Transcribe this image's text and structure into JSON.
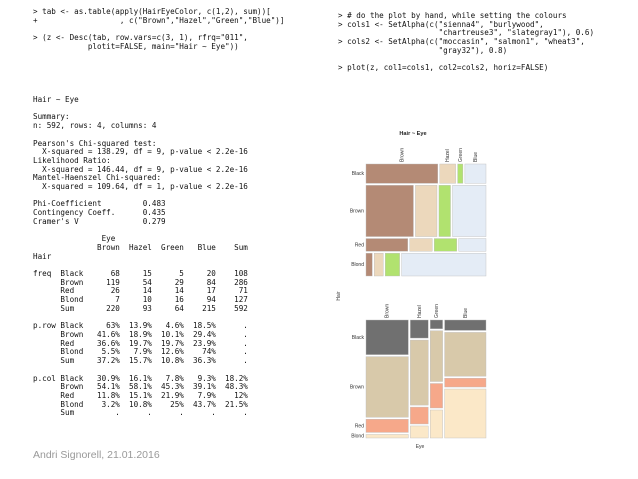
{
  "console_left_top": "> tab <- as.table(apply(HairEyeColor, c(1,2), sum))[\n+                  , c(\"Brown\",\"Hazel\",\"Green\",\"Blue\")]\n\n> (z <- Desc(tab, row.vars=c(3, 1), rfrq=\"011\",\n            plotit=FALSE, main=\"Hair ~ Eye\"))",
  "console_left_output": "Hair ~ Eye\n\nSummary:\nn: 592, rows: 4, columns: 4\n\nPearson's Chi-squared test:\n  X-squared = 138.29, df = 9, p-value < 2.2e-16\nLikelihood Ratio:\n  X-squared = 146.44, df = 9, p-value < 2.2e-16\nMantel-Haenszel Chi-squared:\n  X-squared = 109.64, df = 1, p-value < 2.2e-16\n\nPhi-Coefficient         0.483\nContingency Coeff.      0.435\nCramer's V              0.279\n\n               Eye\n              Brown  Hazel  Green   Blue    Sum\nHair\n\nfreq  Black      68     15      5     20    108\n      Brown     119     54     29     84    286\n      Red        26     14     14     17     71\n      Blond       7     10     16     94    127\n      Sum       220     93     64    215    592\n\np.row Black     63%  13.9%   4.6%  18.5%      .\n      Brown   41.6%  18.9%  10.1%  29.4%      .\n      Red     36.6%  19.7%  19.7%  23.9%      .\n      Blond    5.5%   7.9%  12.6%    74%      .\n      Sum     37.2%  15.7%  10.8%  36.3%      .\n\np.col Black   30.9%  16.1%   7.8%   9.3%  18.2%\n      Brown   54.1%  58.1%  45.3%  39.1%  48.3%\n      Red     11.8%  15.1%  21.9%   7.9%    12%\n      Blond    3.2%  10.8%    25%  43.7%  21.5%\n      Sum         .      .      .      .      .",
  "console_right": "> # do the plot by hand, while setting the colours\n> cols1 <- SetAlpha(c(\"sienna4\", \"burlywood\",\n                      \"chartreuse3\", \"slategray1\"), 0.6)\n> cols2 <- SetAlpha(c(\"moccasin\", \"salmon1\", \"wheat3\",\n                      \"gray32\"), 0.8)\n\n> plot(z, col1=cols1, col2=cols2, horiz=FALSE)",
  "footer": "Andri Signorell, 21.01.2016",
  "plot": {
    "title": "Hair ~ Eye",
    "y_axis_label": "Hair",
    "x_axis_label": "Eye",
    "hair_levels": [
      "Black",
      "Brown",
      "Red",
      "Blond"
    ],
    "eye_levels": [
      "Brown",
      "Hazel",
      "Green",
      "Blue"
    ],
    "colors_top": [
      "#b48a75",
      "#ecd8bc",
      "#b1e26f",
      "#e4ecf6"
    ],
    "colors_bottom": [
      "#707070",
      "#d8c9aa",
      "#f6a88a",
      "#fbe8c8"
    ]
  },
  "chart_data": {
    "type": "mosaic",
    "title": "Hair ~ Eye",
    "xlabel": "Eye",
    "ylabel": "Hair",
    "rows": [
      "Black",
      "Brown",
      "Red",
      "Blond"
    ],
    "columns": [
      "Brown",
      "Hazel",
      "Green",
      "Blue"
    ],
    "counts": [
      [
        68,
        15,
        5,
        20
      ],
      [
        119,
        54,
        29,
        84
      ],
      [
        26,
        14,
        14,
        17
      ],
      [
        7,
        10,
        16,
        94
      ]
    ]
  }
}
